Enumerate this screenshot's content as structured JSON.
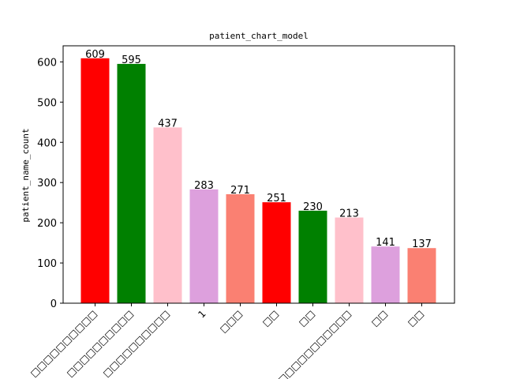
{
  "chart_data": {
    "type": "bar",
    "title": "patient_chart_model",
    "xlabel": "",
    "ylabel": "patient_name_count",
    "ylim": [
      0,
      640
    ],
    "yticks": [
      0,
      100,
      200,
      300,
      400,
      500,
      600
    ],
    "grid": false,
    "categories": [
      "□□□□□□□□□□",
      "□□□□□□□□□□",
      "□□□□□□□□□□",
      "1",
      "□□□",
      "□□",
      "□□",
      "□□□□□□□□□□□□□",
      "□□",
      "□□"
    ],
    "values": [
      609,
      595,
      437,
      283,
      271,
      251,
      230,
      213,
      141,
      137
    ],
    "colors": [
      "#ff0000",
      "#008000",
      "#ffc0cb",
      "#dda0dd",
      "#fa8072",
      "#ff0000",
      "#008000",
      "#ffc0cb",
      "#dda0dd",
      "#fa8072"
    ]
  }
}
